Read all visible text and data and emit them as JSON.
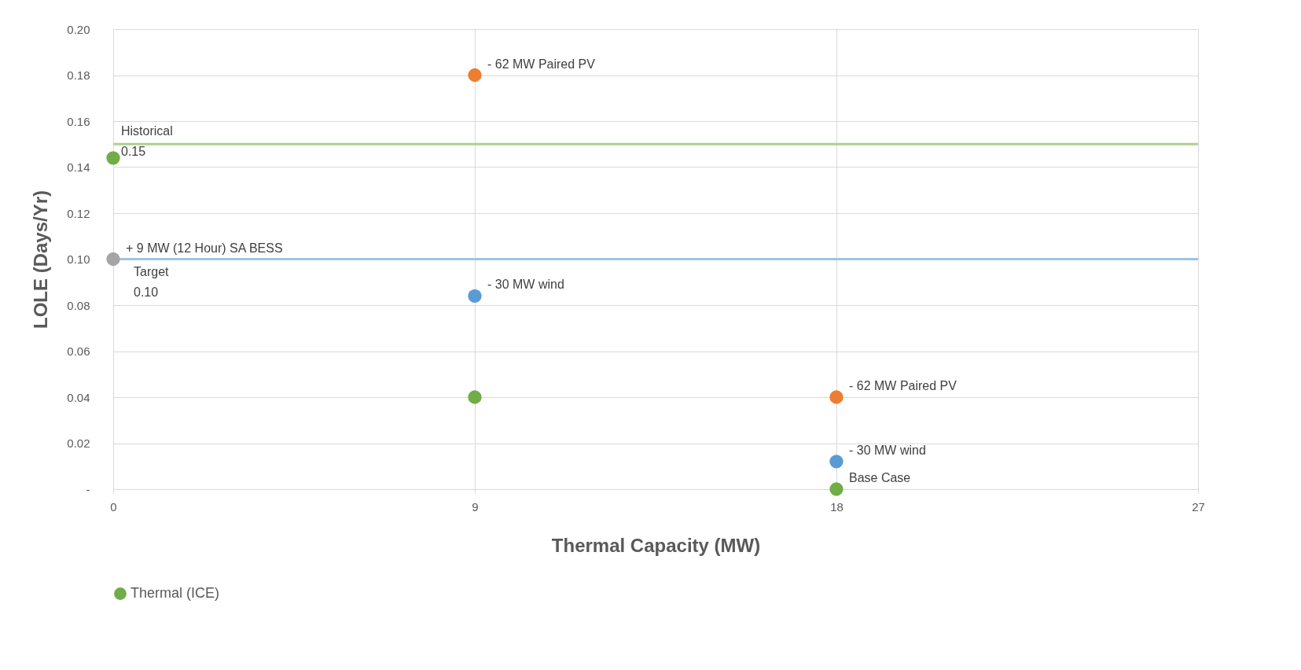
{
  "chart_data": {
    "type": "scatter",
    "xlabel": "Thermal Capacity (MW)",
    "ylabel": "LOLE (Days/Yr)",
    "xlim": [
      0,
      27
    ],
    "xticks": [
      0,
      9,
      18,
      27
    ],
    "ylim": [
      0,
      0.2
    ],
    "yticks": [
      {
        "value": 0,
        "label": "-"
      },
      0.02,
      0.04,
      0.06,
      0.08,
      {
        "value": 0.1,
        "label": "0.10"
      },
      0.12,
      0.14,
      0.16,
      0.18,
      {
        "value": 0.2,
        "label": "0.20"
      }
    ],
    "grid": true,
    "legend": "bottom",
    "marker": "circle",
    "series": [
      {
        "name": "Thermal (ICE)",
        "color": "#70ad47",
        "x": [
          0,
          9,
          18
        ],
        "values": [
          0.144,
          0.04,
          0
        ]
      },
      {
        "color": "#ed7d31",
        "x": [
          9,
          18
        ],
        "values": [
          0.18,
          0.04
        ]
      },
      {
        "color": "#5b9bd5",
        "x": [
          9,
          18
        ],
        "values": [
          0.084,
          0.012
        ]
      },
      {
        "color": "#a5a5a5",
        "x": [
          0
        ],
        "values": [
          0.1
        ]
      }
    ],
    "ref_lines": [
      {
        "axis": "y",
        "value": 0.15,
        "label": "Historical 0.15",
        "color": "#a9d18e"
      },
      {
        "axis": "y",
        "value": 0.1,
        "label": "Target 0.10",
        "color": "#9dc3e6"
      }
    ],
    "annotations": [
      {
        "text": "- 62 MW Paired PV",
        "x": 9,
        "y": 0.18
      },
      {
        "text": "- 30 MW wind",
        "x": 9,
        "y": 0.084
      },
      {
        "text": "- 62 MW Paired PV",
        "x": 18,
        "y": 0.04
      },
      {
        "text": "- 30 MW wind",
        "x": 18,
        "y": 0.012
      },
      {
        "text": "Base Case",
        "x": 18,
        "y": 0
      },
      {
        "text": "+ 9 MW (12 Hour) SA BESS",
        "x": 0,
        "y": 0.1
      }
    ]
  }
}
